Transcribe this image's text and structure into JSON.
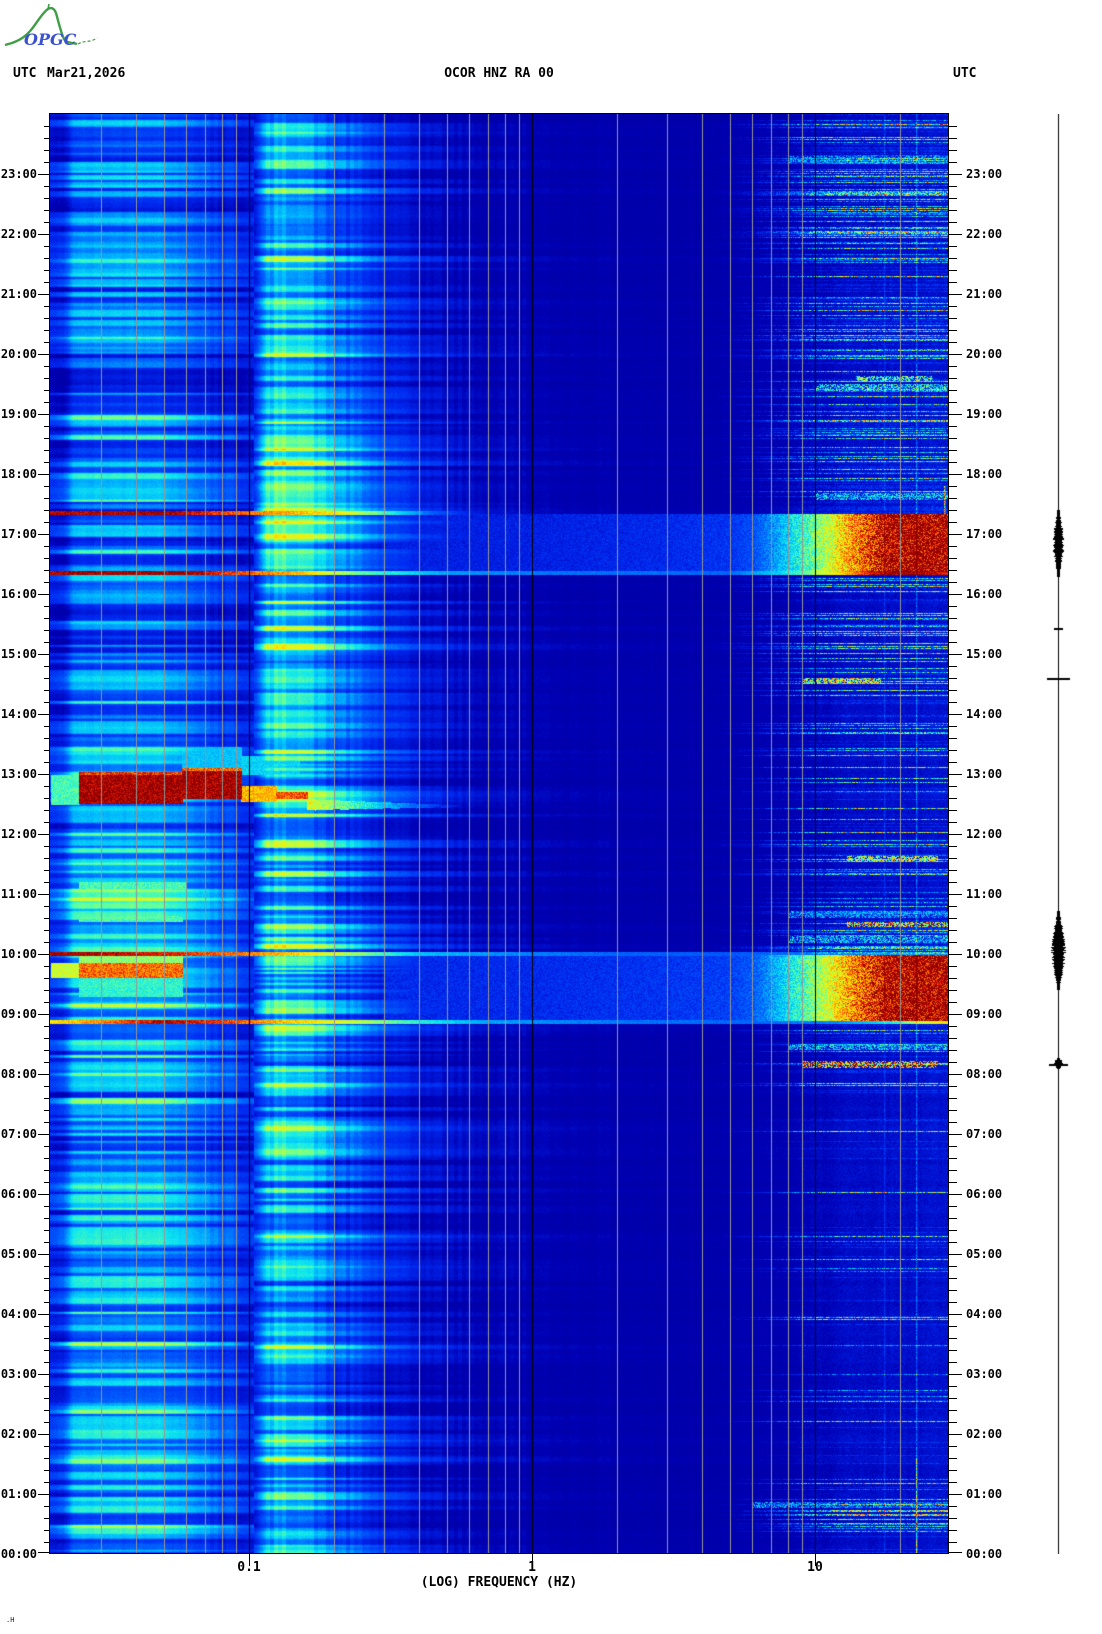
{
  "logo": {
    "text": "OPGC",
    "curve_color": "#3f9e46",
    "text_color": "#3b52d0"
  },
  "header": {
    "left_utc": "UTC",
    "date": "Mar21,2026",
    "title": "OCOR HNZ RA 00",
    "right_utc": "UTC"
  },
  "footer_mark": ".H",
  "axes": {
    "x_label": "(LOG) FREQUENCY (HZ)",
    "x_tick_labels": [
      "0.1",
      "1",
      "10"
    ],
    "x_tick_values": [
      0.1,
      1,
      10
    ],
    "time_labels": [
      "23:00",
      "22:00",
      "21:00",
      "20:00",
      "19:00",
      "18:00",
      "17:00",
      "16:00",
      "15:00",
      "14:00",
      "13:00",
      "12:00",
      "11:00",
      "10:00",
      "09:00",
      "08:00",
      "07:00",
      "06:00",
      "05:00",
      "04:00",
      "03:00",
      "02:00",
      "01:00",
      "00:00"
    ],
    "minor_ticks_per_hour": 5
  },
  "chart_data": {
    "type": "heatmap",
    "subtype": "seismic-spectrogram",
    "station": "OCOR HNZ RA 00",
    "date": "Mar21,2026",
    "xlabel": "(LOG) FREQUENCY (HZ)",
    "x_scale": "log10",
    "x_range_hz": [
      0.0198,
      30
    ],
    "x_ticks": [
      0.1,
      1,
      10
    ],
    "y_range_hours": [
      0,
      24
    ],
    "y_axis": "UTC",
    "grid": true,
    "colormap_stops": [
      [
        0,
        "#000064"
      ],
      [
        0.1,
        "#000096"
      ],
      [
        0.2,
        "#0000b4"
      ],
      [
        0.3,
        "#0028f0"
      ],
      [
        0.4,
        "#0064ff"
      ],
      [
        0.48,
        "#00b4ff"
      ],
      [
        0.55,
        "#10e8f0"
      ],
      [
        0.62,
        "#60ffa0"
      ],
      [
        0.7,
        "#c0ff40"
      ],
      [
        0.78,
        "#ffec00"
      ],
      [
        0.86,
        "#ff8c00"
      ],
      [
        0.93,
        "#f02000"
      ],
      [
        1,
        "#8f0000"
      ]
    ],
    "base_profile": [
      [
        0.02,
        0.27
      ],
      [
        0.022,
        0.27
      ],
      [
        0.024,
        0.4
      ],
      [
        0.047,
        0.41
      ],
      [
        0.055,
        0.37
      ],
      [
        0.065,
        0.35
      ],
      [
        0.08,
        0.31
      ],
      [
        0.095,
        0.28
      ],
      [
        0.105,
        0.3
      ],
      [
        0.115,
        0.45
      ],
      [
        0.125,
        0.5
      ],
      [
        0.15,
        0.5
      ],
      [
        0.17,
        0.45
      ],
      [
        0.2,
        0.38
      ],
      [
        0.25,
        0.33
      ],
      [
        0.35,
        0.26
      ],
      [
        0.5,
        0.22
      ],
      [
        0.8,
        0.2
      ],
      [
        1.2,
        0.19
      ],
      [
        3,
        0.18
      ],
      [
        8,
        0.18
      ],
      [
        12,
        0.2
      ],
      [
        20,
        0.21
      ],
      [
        30,
        0.22
      ]
    ],
    "stripe_amp_profile": [
      [
        0.02,
        0.55
      ],
      [
        0.024,
        1.0
      ],
      [
        0.05,
        1.0
      ],
      [
        0.065,
        0.8
      ],
      [
        0.09,
        0.6
      ],
      [
        0.1,
        0.4
      ],
      [
        0.11,
        0.7
      ],
      [
        0.115,
        1.0
      ],
      [
        0.19,
        1.0
      ],
      [
        0.25,
        0.7
      ],
      [
        0.35,
        0.45
      ],
      [
        0.6,
        0.25
      ],
      [
        1,
        0.14
      ],
      [
        2,
        0.08
      ],
      [
        5,
        0.06
      ],
      [
        30,
        0.06
      ]
    ],
    "low_band_weight": [
      [
        0.02,
        0.5
      ],
      [
        0.024,
        1
      ],
      [
        0.06,
        1
      ],
      [
        0.09,
        0.6
      ],
      [
        0.105,
        0.2
      ],
      [
        0.12,
        0
      ],
      [
        30,
        0
      ]
    ],
    "cyan_band_weight": [
      [
        0.02,
        0
      ],
      [
        0.105,
        0
      ],
      [
        0.115,
        1
      ],
      [
        0.2,
        1
      ],
      [
        0.3,
        0.5
      ],
      [
        0.5,
        0.15
      ],
      [
        1,
        0
      ],
      [
        30,
        0
      ]
    ],
    "hf_weight": [
      [
        0.02,
        0
      ],
      [
        4,
        0
      ],
      [
        6,
        0.15
      ],
      [
        8,
        0.45
      ],
      [
        10,
        0.75
      ],
      [
        13,
        1
      ],
      [
        30,
        1
      ]
    ],
    "low_band_envelope": [
      [
        0,
        0.03
      ],
      [
        1,
        0.05
      ],
      [
        2,
        0.06
      ],
      [
        4,
        0.07
      ],
      [
        6,
        0.05
      ],
      [
        7,
        0.02
      ],
      [
        8,
        0.03
      ],
      [
        9,
        0.1
      ],
      [
        9.5,
        0.12
      ],
      [
        11.5,
        0.12
      ],
      [
        12,
        0.06
      ],
      [
        12.4,
        0.08
      ],
      [
        13.2,
        0.1
      ],
      [
        14,
        0.02
      ],
      [
        16,
        0
      ],
      [
        18,
        -0.01
      ],
      [
        20,
        -0.01
      ],
      [
        22,
        0
      ],
      [
        24,
        0.02
      ]
    ],
    "cyan_band_envelope": [
      [
        0,
        0.01
      ],
      [
        0.8,
        0.04
      ],
      [
        2,
        0
      ],
      [
        5,
        -0.02
      ],
      [
        8,
        -0.03
      ],
      [
        9,
        0.02
      ],
      [
        10,
        0.04
      ],
      [
        11,
        0
      ],
      [
        12,
        0.02
      ],
      [
        12.5,
        0.06
      ],
      [
        13,
        0.04
      ],
      [
        15,
        0.02
      ],
      [
        16,
        0.06
      ],
      [
        17,
        0.1
      ],
      [
        18,
        0.08
      ],
      [
        19,
        0.04
      ],
      [
        20,
        0.02
      ],
      [
        21,
        0.04
      ],
      [
        22,
        0.06
      ],
      [
        23,
        0.04
      ],
      [
        24,
        0.02
      ]
    ],
    "hf_speckle_envelope": [
      [
        0,
        0.1
      ],
      [
        0.5,
        0.3
      ],
      [
        1.2,
        0.25
      ],
      [
        2,
        0.12
      ],
      [
        4,
        0.1
      ],
      [
        7,
        0.12
      ],
      [
        7.9,
        0.2
      ],
      [
        8.3,
        0.45
      ],
      [
        9,
        0.3
      ],
      [
        10.1,
        0.55
      ],
      [
        11,
        0.5
      ],
      [
        11.8,
        0.3
      ],
      [
        12.5,
        0.2
      ],
      [
        14,
        0.25
      ],
      [
        14.8,
        0.35
      ],
      [
        16,
        0.3
      ],
      [
        16.5,
        0.45
      ],
      [
        17.6,
        0.55
      ],
      [
        18.5,
        0.45
      ],
      [
        19.5,
        0.5
      ],
      [
        20.5,
        0.45
      ],
      [
        21.5,
        0.5
      ],
      [
        22.5,
        0.55
      ],
      [
        23.5,
        0.5
      ],
      [
        24,
        0.45
      ]
    ],
    "gridlines": {
      "minor_hz": [
        0.03,
        0.04,
        0.05,
        0.06,
        0.07,
        0.08,
        0.09,
        0.2,
        0.3,
        0.4,
        0.5,
        0.6,
        0.7,
        0.8,
        0.9,
        2,
        3,
        4,
        5,
        6,
        7,
        8,
        9,
        20
      ],
      "major_hz": [
        0.1,
        1,
        10
      ],
      "minor_color": "#969696",
      "major_color": "#000000"
    },
    "events": {
      "lines": [
        {
          "label": "broadband event 17:21",
          "t": 17.355,
          "rows": 4,
          "profile": [
            [
              0.02,
              0.97
            ],
            [
              0.05,
              1.0
            ],
            [
              0.085,
              0.9
            ],
            [
              0.12,
              0.85
            ],
            [
              0.2,
              0.78
            ],
            [
              0.3,
              0.6
            ],
            [
              0.45,
              0.38
            ],
            [
              0.7,
              0.24
            ],
            [
              30,
              0
            ]
          ]
        },
        {
          "label": "broadband event 16:21",
          "t": 16.345,
          "rows": 4,
          "profile": [
            [
              0.02,
              0.99
            ],
            [
              0.06,
              1.0
            ],
            [
              0.1,
              0.88
            ],
            [
              0.15,
              0.82
            ],
            [
              0.25,
              0.62
            ],
            [
              0.5,
              0.46
            ],
            [
              1,
              0.42
            ],
            [
              5,
              0.4
            ],
            [
              8,
              0.55
            ],
            [
              12,
              0.78
            ],
            [
              16,
              0.95
            ],
            [
              20,
              1.0
            ],
            [
              30,
              0.95
            ]
          ]
        },
        {
          "label": "broadband event 10:00",
          "t": 9.995,
          "rows": 4,
          "profile": [
            [
              0.02,
              1.0
            ],
            [
              0.05,
              0.95
            ],
            [
              0.09,
              0.88
            ],
            [
              0.15,
              0.8
            ],
            [
              0.25,
              0.65
            ],
            [
              0.4,
              0.5
            ],
            [
              0.8,
              0.44
            ],
            [
              2,
              0.4
            ],
            [
              5,
              0.38
            ],
            [
              10,
              0.42
            ],
            [
              20,
              0.46
            ],
            [
              30,
              0.44
            ]
          ]
        },
        {
          "label": "broadband event 08:52",
          "t": 8.875,
          "rows": 4,
          "profile": [
            [
              0.02,
              0.78
            ],
            [
              0.028,
              0.85
            ],
            [
              0.05,
              0.98
            ],
            [
              0.09,
              0.9
            ],
            [
              0.13,
              0.82
            ],
            [
              0.2,
              0.75
            ],
            [
              0.35,
              0.6
            ],
            [
              0.7,
              0.46
            ],
            [
              2,
              0.42
            ],
            [
              6,
              0.4
            ],
            [
              12,
              0.44
            ],
            [
              18,
              0.55
            ],
            [
              24,
              0.72
            ],
            [
              30,
              0.8
            ]
          ]
        }
      ],
      "bands": [
        {
          "label": "high-frequency swarm 16:20-17:20",
          "t0": 16.38,
          "t1": 17.33,
          "profile": [
            [
              0.3,
              0.28
            ],
            [
              1,
              0.28
            ],
            [
              3,
              0.3
            ],
            [
              5,
              0.32
            ],
            [
              6,
              0.36
            ],
            [
              7,
              0.44
            ],
            [
              8,
              0.52
            ],
            [
              9,
              0.58
            ],
            [
              10,
              0.64
            ],
            [
              11,
              0.7
            ],
            [
              12,
              0.77
            ],
            [
              14,
              0.86
            ],
            [
              16,
              0.93
            ],
            [
              18,
              0.99
            ],
            [
              20,
              1.0
            ],
            [
              30,
              1.0
            ]
          ]
        },
        {
          "label": "high-frequency swarm 08:54-10:00",
          "t0": 8.9,
          "t1": 9.98,
          "profile": [
            [
              0.3,
              0.3
            ],
            [
              1,
              0.3
            ],
            [
              3,
              0.32
            ],
            [
              5,
              0.34
            ],
            [
              6,
              0.38
            ],
            [
              7,
              0.46
            ],
            [
              8,
              0.54
            ],
            [
              9,
              0.6
            ],
            [
              10,
              0.66
            ],
            [
              11,
              0.72
            ],
            [
              12,
              0.78
            ],
            [
              14,
              0.87
            ],
            [
              16,
              0.93
            ],
            [
              18,
              0.99
            ],
            [
              21,
              1.0
            ],
            [
              30,
              1.0
            ]
          ]
        }
      ],
      "rects": [
        {
          "label": "tremor core 12:30-13:00",
          "t0": 12.52,
          "t1": 12.98,
          "f0": 0.025,
          "f1": 0.058,
          "v": 1.0
        },
        {
          "label": "tremor core right",
          "t0": 12.6,
          "t1": 13.05,
          "f0": 0.058,
          "f1": 0.094,
          "v": 1.0
        },
        {
          "t0": 12.98,
          "t1": 13.04,
          "f0": 0.025,
          "f1": 0.058,
          "v": 0.92
        },
        {
          "t0": 13.05,
          "t1": 13.1,
          "f0": 0.058,
          "f1": 0.094,
          "v": 0.88
        },
        {
          "t0": 12.5,
          "t1": 12.98,
          "f0": 0.02,
          "f1": 0.025,
          "v": 0.6
        },
        {
          "t0": 12.55,
          "t1": 12.8,
          "f0": 0.094,
          "f1": 0.125,
          "v": 0.82
        },
        {
          "t0": 12.6,
          "t1": 12.7,
          "f0": 0.125,
          "f1": 0.16,
          "v": 0.9
        },
        {
          "t0": 13.04,
          "t1": 13.45,
          "f0": 0.058,
          "f1": 0.094,
          "v": 0.5
        },
        {
          "t0": 13.0,
          "t1": 13.3,
          "f0": 0.094,
          "f1": 0.15,
          "v": 0.52
        },
        {
          "label": "low-freq burst 09:40",
          "t0": 9.62,
          "t1": 9.85,
          "f0": 0.025,
          "f1": 0.058,
          "v": 0.88
        },
        {
          "t0": 9.62,
          "t1": 9.85,
          "f0": 0.02,
          "f1": 0.025,
          "v": 0.72
        },
        {
          "t0": 9.3,
          "t1": 9.62,
          "f0": 0.025,
          "f1": 0.058,
          "v": 0.58
        },
        {
          "t0": 9.85,
          "t1": 9.97,
          "f0": 0.025,
          "f1": 0.058,
          "v": 0.66
        },
        {
          "t0": 10.55,
          "t1": 10.63,
          "f0": 0.025,
          "f1": 0.058,
          "v": 0.6
        },
        {
          "t0": 10.8,
          "t1": 10.88,
          "f0": 0.025,
          "f1": 0.058,
          "v": 0.56
        },
        {
          "t0": 11.1,
          "t1": 11.2,
          "f0": 0.025,
          "f1": 0.06,
          "v": 0.6
        },
        {
          "label": "hf burst 08:10",
          "t0": 8.12,
          "t1": 8.22,
          "f0": 9,
          "f1": 27,
          "v": 0.85,
          "speckle": true
        },
        {
          "t0": 8.42,
          "t1": 8.5,
          "f0": 8,
          "f1": 30,
          "v": 0.5,
          "speckle": true
        },
        {
          "t0": 10.46,
          "t1": 10.54,
          "f0": 13,
          "f1": 30,
          "v": 0.8,
          "speckle": true
        },
        {
          "t0": 10.2,
          "t1": 10.3,
          "f0": 8,
          "f1": 30,
          "v": 0.5,
          "speckle": true
        },
        {
          "t0": 10.62,
          "t1": 10.72,
          "f0": 8,
          "f1": 30,
          "v": 0.45,
          "speckle": true
        },
        {
          "t0": 14.52,
          "t1": 14.6,
          "f0": 9,
          "f1": 17,
          "v": 0.75,
          "speckle": true
        },
        {
          "t0": 11.55,
          "t1": 11.63,
          "f0": 13,
          "f1": 27,
          "v": 0.7,
          "speckle": true
        },
        {
          "t0": 0.78,
          "t1": 0.86,
          "f0": 6,
          "f1": 30,
          "v": 0.45,
          "speckle": true
        },
        {
          "t0": 17.58,
          "t1": 17.68,
          "f0": 10,
          "f1": 30,
          "v": 0.5,
          "speckle": true
        },
        {
          "t0": 19.4,
          "t1": 19.5,
          "f0": 10,
          "f1": 30,
          "v": 0.55,
          "speckle": true
        },
        {
          "t0": 19.55,
          "t1": 19.63,
          "f0": 14,
          "f1": 26,
          "v": 0.6,
          "speckle": true
        },
        {
          "t0": 23.2,
          "t1": 23.3,
          "f0": 8,
          "f1": 30,
          "v": 0.45,
          "speckle": true
        }
      ],
      "tail": {
        "label": "tremor tail 12:25",
        "f0": 0.16,
        "f1": 0.55,
        "t_start": 12.58,
        "t_drift": -0.1,
        "v0": 0.75,
        "v1": 0.26,
        "h0_rows": 9,
        "h1_rows": 2
      },
      "vlines": [
        {
          "f": 22.8,
          "add": 0.16,
          "t0": 0,
          "t1": 24
        },
        {
          "f": 17.5,
          "add": 0.07,
          "t0": 0,
          "t1": 24
        },
        {
          "f": 28.5,
          "add": 0.5,
          "t0": 17.35,
          "t1": 17.8
        },
        {
          "f": 22.8,
          "add": 0.3,
          "t0": 0,
          "t1": 1.6
        }
      ]
    },
    "trace": {
      "label": "amplitude trace",
      "line_x": 1058,
      "bursts": [
        {
          "t0": 16.3,
          "t1": 17.4,
          "max_halfwidth": 5
        },
        {
          "t0": 9.42,
          "t1": 10.72,
          "max_halfwidth": 7
        },
        {
          "t0": 8.1,
          "t1": 8.26,
          "max_halfwidth": 5
        }
      ],
      "ticks": [
        {
          "t": 15.43,
          "halfwidth": 4
        },
        {
          "t": 14.6,
          "halfwidth": 11
        },
        {
          "t": 8.17,
          "halfwidth": 9
        }
      ]
    }
  }
}
